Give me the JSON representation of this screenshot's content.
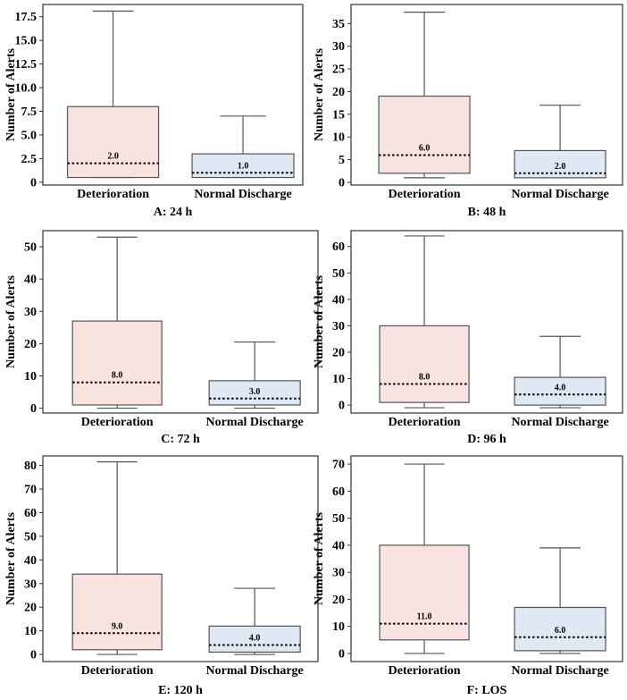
{
  "colors": {
    "deterioration_fill": "#f8e3e1",
    "normal_fill": "#dfe9f4",
    "box_stroke": "#555555",
    "median_line": "#000000"
  },
  "chart_data": [
    {
      "type": "boxplot",
      "caption": "A: 24 h",
      "ylabel": "Number of Alerts",
      "categories": [
        "Deterioration",
        "Normal Discharge"
      ],
      "yticks": [
        0,
        2.5,
        5.0,
        7.5,
        10.0,
        12.5,
        15.0,
        17.5
      ],
      "ytick_labels": [
        "0",
        "2.5",
        "5.0",
        "7.5",
        "10.0",
        "12.5",
        "15.0",
        "17.5"
      ],
      "ylim": [
        -0.3,
        18.8
      ],
      "boxes": [
        {
          "whisker_low": 0.5,
          "q1": 0.5,
          "median": 2.0,
          "q3": 8.0,
          "whisker_high": 18.1,
          "median_label": "2.0"
        },
        {
          "whisker_low": 0.5,
          "q1": 0.5,
          "median": 1.0,
          "q3": 3.0,
          "whisker_high": 7.0,
          "median_label": "1.0"
        }
      ]
    },
    {
      "type": "boxplot",
      "caption": "B: 48 h",
      "ylabel": "Number of Alerts",
      "categories": [
        "Deterioration",
        "Normal Discharge"
      ],
      "yticks": [
        0,
        5,
        10,
        15,
        20,
        25,
        30,
        35
      ],
      "ytick_labels": [
        "0",
        "5",
        "10",
        "15",
        "20",
        "25",
        "30",
        "35"
      ],
      "ylim": [
        -0.6,
        39.2
      ],
      "boxes": [
        {
          "whisker_low": 1.0,
          "q1": 2.0,
          "median": 6.0,
          "q3": 19.0,
          "whisker_high": 37.5,
          "median_label": "6.0"
        },
        {
          "whisker_low": 1.0,
          "q1": 1.0,
          "median": 2.0,
          "q3": 7.0,
          "whisker_high": 17.0,
          "median_label": "2.0"
        }
      ]
    },
    {
      "type": "boxplot",
      "caption": "C: 72 h",
      "ylabel": "Number of Alerts",
      "categories": [
        "Deterioration",
        "Normal Discharge"
      ],
      "yticks": [
        0,
        10,
        20,
        30,
        40,
        50
      ],
      "ytick_labels": [
        "0",
        "10",
        "20",
        "30",
        "40",
        "50"
      ],
      "ylim": [
        -1.5,
        55
      ],
      "boxes": [
        {
          "whisker_low": 0,
          "q1": 1.0,
          "median": 8.0,
          "q3": 27.0,
          "whisker_high": 53.0,
          "median_label": "8.0"
        },
        {
          "whisker_low": 0,
          "q1": 1.0,
          "median": 3.0,
          "q3": 8.5,
          "whisker_high": 20.5,
          "median_label": "3.0"
        }
      ]
    },
    {
      "type": "boxplot",
      "caption": "D: 96 h",
      "ylabel": "Number of Alerts",
      "categories": [
        "Deterioration",
        "Normal Discharge"
      ],
      "yticks": [
        0,
        10,
        20,
        30,
        40,
        50,
        60
      ],
      "ytick_labels": [
        "0",
        "10",
        "20",
        "30",
        "40",
        "50",
        "60"
      ],
      "ylim": [
        -3,
        66
      ],
      "boxes": [
        {
          "whisker_low": -1.0,
          "q1": 1.0,
          "median": 8.0,
          "q3": 30.0,
          "whisker_high": 64.0,
          "median_label": "8.0"
        },
        {
          "whisker_low": -1.0,
          "q1": 0,
          "median": 4.0,
          "q3": 10.5,
          "whisker_high": 26.0,
          "median_label": "4.0"
        }
      ]
    },
    {
      "type": "boxplot",
      "caption": "E: 120 h",
      "ylabel": "Number of Alerts",
      "categories": [
        "Deterioration",
        "Normal Discharge"
      ],
      "yticks": [
        0,
        10,
        20,
        30,
        40,
        50,
        60,
        70,
        80
      ],
      "ytick_labels": [
        "0",
        "10",
        "20",
        "30",
        "40",
        "50",
        "60",
        "70",
        "80"
      ],
      "ylim": [
        -3,
        84
      ],
      "boxes": [
        {
          "whisker_low": 0,
          "q1": 2.0,
          "median": 9.0,
          "q3": 34.0,
          "whisker_high": 81.5,
          "median_label": "9.0"
        },
        {
          "whisker_low": 0,
          "q1": 1.0,
          "median": 4.0,
          "q3": 12.0,
          "whisker_high": 28.0,
          "median_label": "4.0"
        }
      ]
    },
    {
      "type": "boxplot",
      "caption": "F: LOS",
      "ylabel": "Number of Alerts",
      "categories": [
        "Deterioration",
        "Normal Discharge"
      ],
      "yticks": [
        0,
        10,
        20,
        30,
        40,
        50,
        60,
        70
      ],
      "ytick_labels": [
        "0",
        "10",
        "20",
        "30",
        "40",
        "50",
        "60",
        "70"
      ],
      "ylim": [
        -3,
        73
      ],
      "boxes": [
        {
          "whisker_low": 0,
          "q1": 5.0,
          "median": 11.0,
          "q3": 40.0,
          "whisker_high": 70.0,
          "median_label": "11.0"
        },
        {
          "whisker_low": 0,
          "q1": 1.0,
          "median": 6.0,
          "q3": 17.0,
          "whisker_high": 39.0,
          "median_label": "6.0"
        }
      ]
    }
  ]
}
